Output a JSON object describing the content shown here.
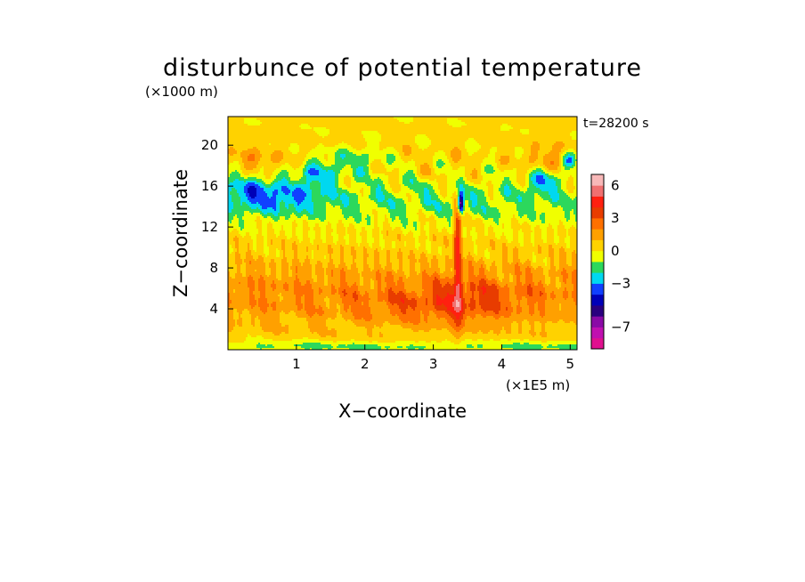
{
  "chart_data": {
    "type": "heatmap",
    "title": "disturbunce of potential temperature",
    "xlabel": "X−coordinate",
    "ylabel": "Z−coordinate",
    "x_unit": "(×1E5 m)",
    "y_unit": "(×1000 m)",
    "time_label": "t=28200 s",
    "xlim": [
      0,
      5.1
    ],
    "ylim": [
      0,
      22.8
    ],
    "x_ticks": [
      1,
      2,
      3,
      4,
      5
    ],
    "y_ticks": [
      4,
      8,
      12,
      16,
      20
    ],
    "colorbar": {
      "levels": [
        -9,
        -8,
        -7,
        -6,
        -5,
        -4,
        -3,
        -2,
        -1,
        0,
        1,
        2,
        3,
        4,
        5,
        6,
        7
      ],
      "labeled_ticks": [
        6,
        3,
        0,
        -3,
        -7
      ],
      "colors": [
        "#e0108f",
        "#c010b0",
        "#8a0aa6",
        "#2a007f",
        "#0000b8",
        "#1040ff",
        "#00d8f0",
        "#2cd85c",
        "#f0ff00",
        "#ffd200",
        "#ffa000",
        "#ff7000",
        "#e83c00",
        "#ff2010",
        "#f07070",
        "#f8b8b8"
      ]
    },
    "features": [
      {
        "x": 3.4,
        "z": 14.3,
        "value": -5
      },
      {
        "x": 3.35,
        "z": 8.0,
        "value": 3
      },
      {
        "x": 0.35,
        "z": 15.8,
        "value": -1
      },
      {
        "x": 1.3,
        "z": 17.0,
        "value": -3
      },
      {
        "x": 4.6,
        "z": 16.5,
        "value": -3
      },
      {
        "x": 4.99,
        "z": 18.5,
        "value": -4
      },
      {
        "x": 2.0,
        "z": 5.0,
        "value": 2
      },
      {
        "x": 3.6,
        "z": 5.0,
        "value": 2
      }
    ]
  }
}
